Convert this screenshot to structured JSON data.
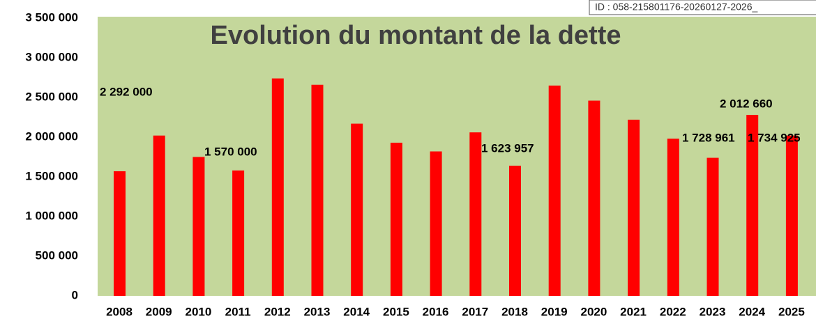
{
  "chart_data": {
    "type": "bar",
    "title": "Evolution du montant de la dette",
    "stamp": "ID : 058-215801176-20260127-2026_",
    "categories": [
      "2008",
      "2009",
      "2010",
      "2011",
      "2012",
      "2013",
      "2014",
      "2015",
      "2016",
      "2017",
      "2018",
      "2019",
      "2020",
      "2021",
      "2022",
      "2023",
      "2024",
      "2025"
    ],
    "values": [
      1570000,
      2020000,
      1750000,
      1580000,
      2740000,
      2660000,
      2170000,
      1930000,
      1820000,
      2060000,
      1640000,
      2650000,
      2460000,
      2220000,
      1980000,
      1740000,
      2280000,
      2020000
    ],
    "color": "#ff0000",
    "annotations": [
      "2 292 000",
      "1 570 000",
      "1 623 957",
      "1 728 961",
      "2 012 660",
      "1 734 925"
    ],
    "ylim": [
      0,
      3500000
    ],
    "yticks": [
      {
        "value": 0,
        "label": "0"
      },
      {
        "value": 500000,
        "label": "500 000"
      },
      {
        "value": 1000000,
        "label": "1 000 000"
      },
      {
        "value": 1500000,
        "label": "1 500 000"
      },
      {
        "value": 2000000,
        "label": "2 000 000"
      },
      {
        "value": 2500000,
        "label": "2 500 000"
      },
      {
        "value": 3000000,
        "label": "3 000 000"
      },
      {
        "value": 3500000,
        "label": "3 500 000"
      }
    ],
    "grid": false,
    "background": "#c4d79b"
  }
}
